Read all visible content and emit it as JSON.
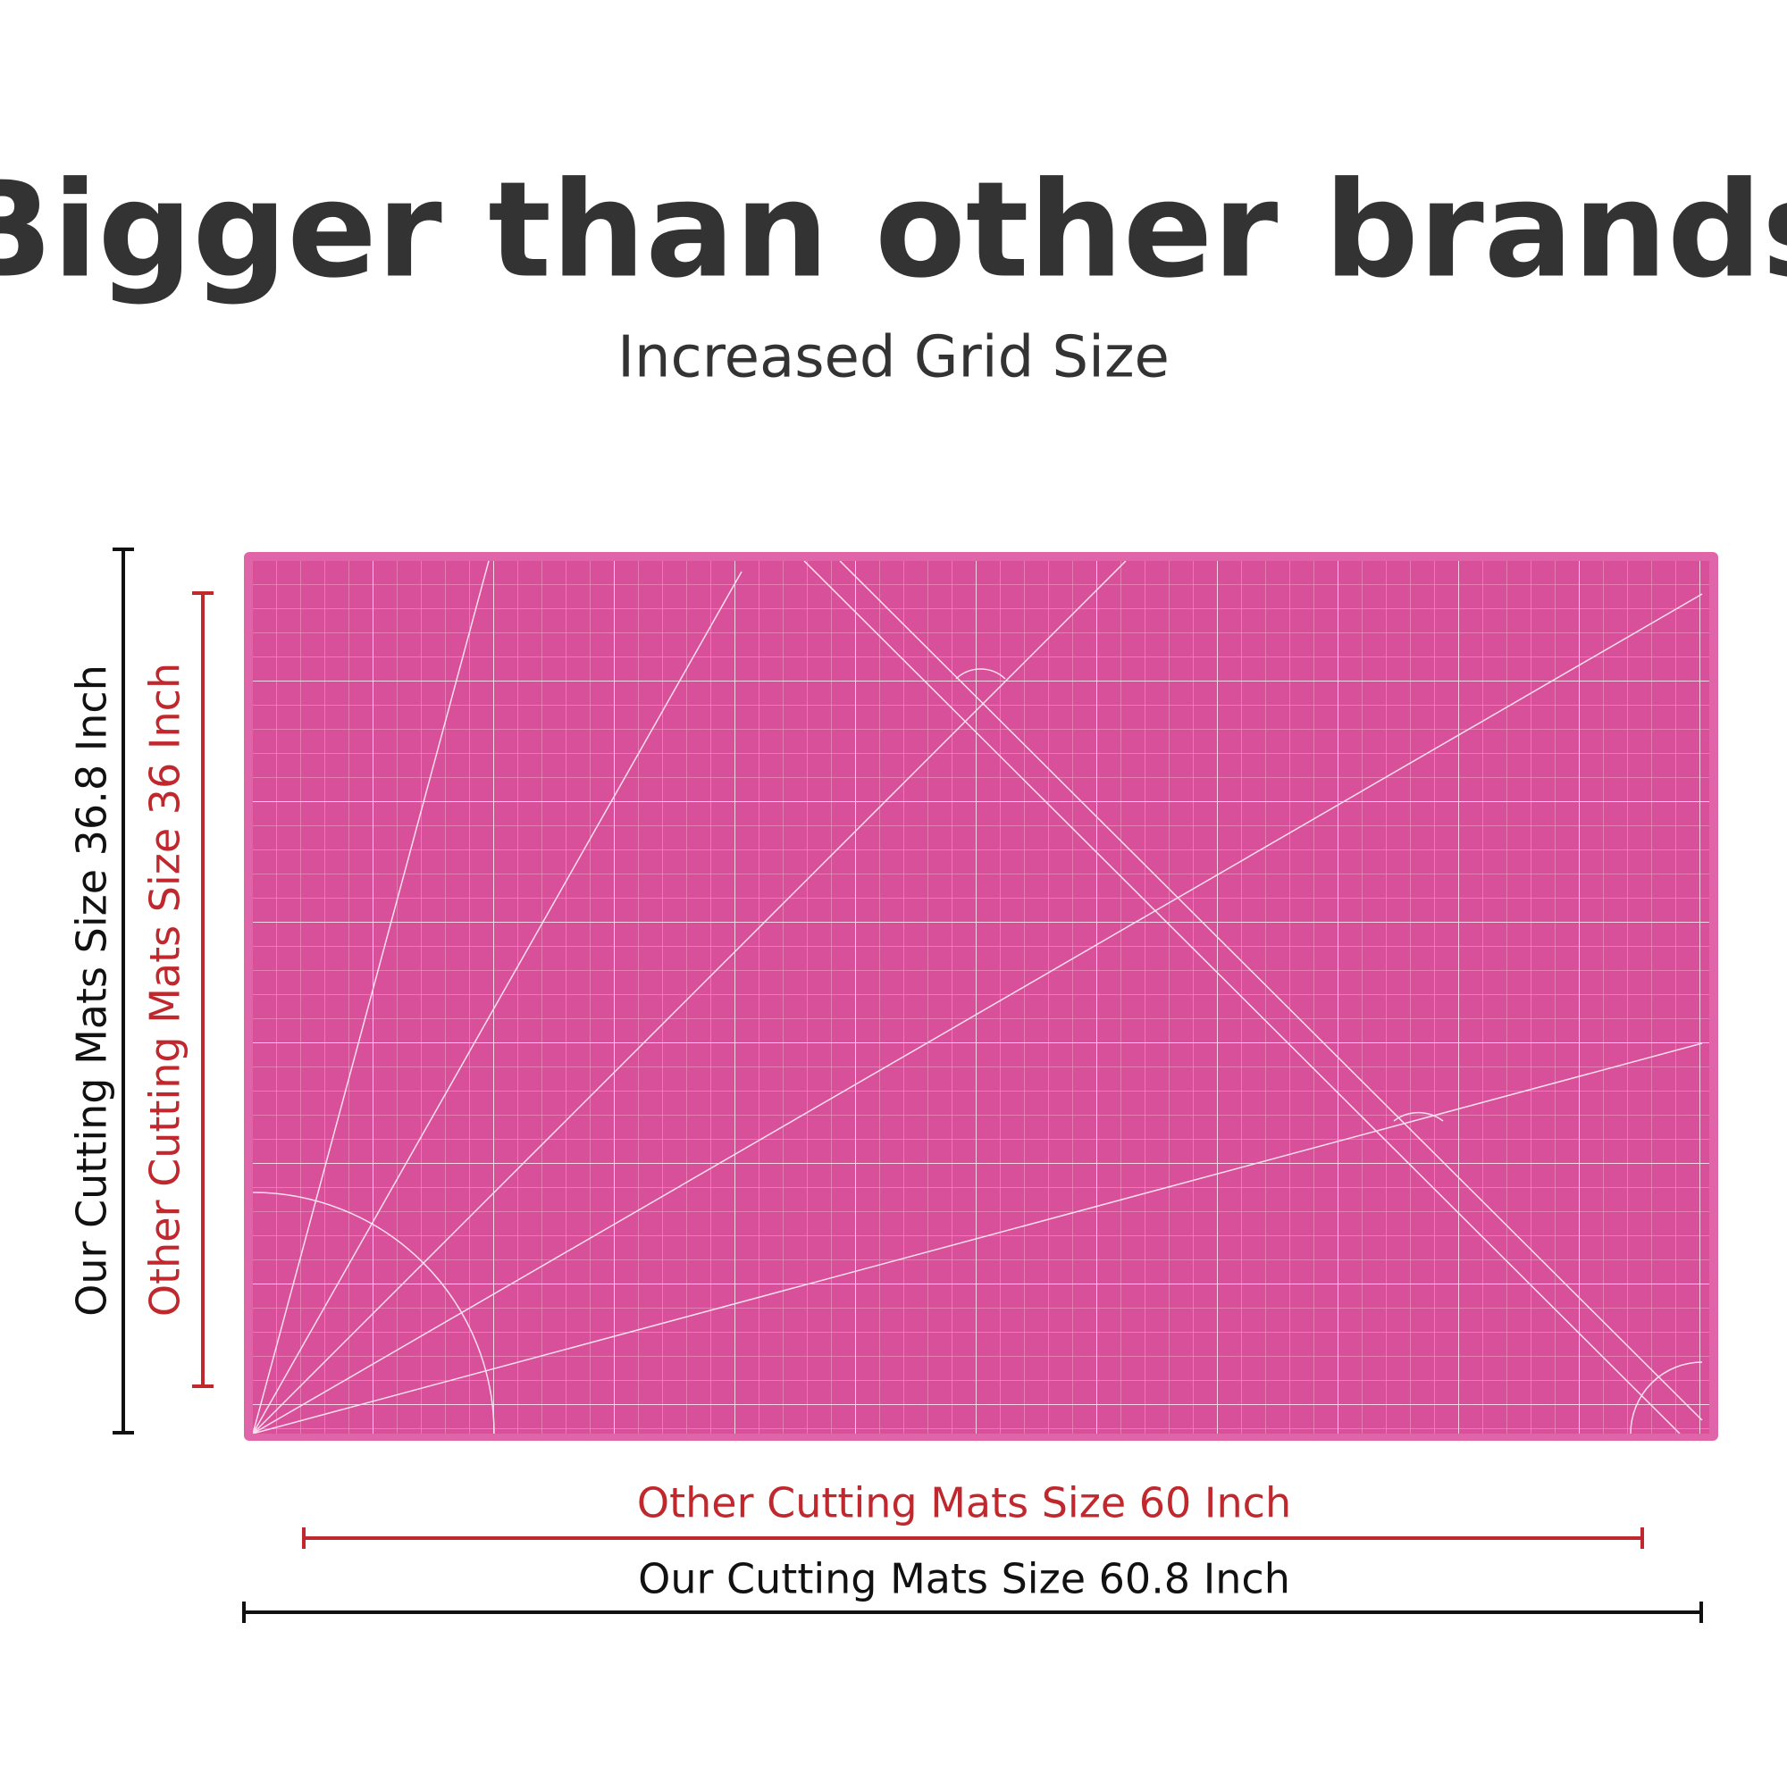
{
  "header": {
    "title": "Bigger than other brands",
    "subtitle": "Increased Grid Size"
  },
  "labels": {
    "our_height": "Our Cutting Mats Size 36.8 Inch",
    "other_height": "Other Cutting Mats Size 36 Inch",
    "other_width": "Other Cutting Mats Size 60 Inch",
    "our_width": "Our Cutting Mats Size 60.8 Inch"
  }
}
